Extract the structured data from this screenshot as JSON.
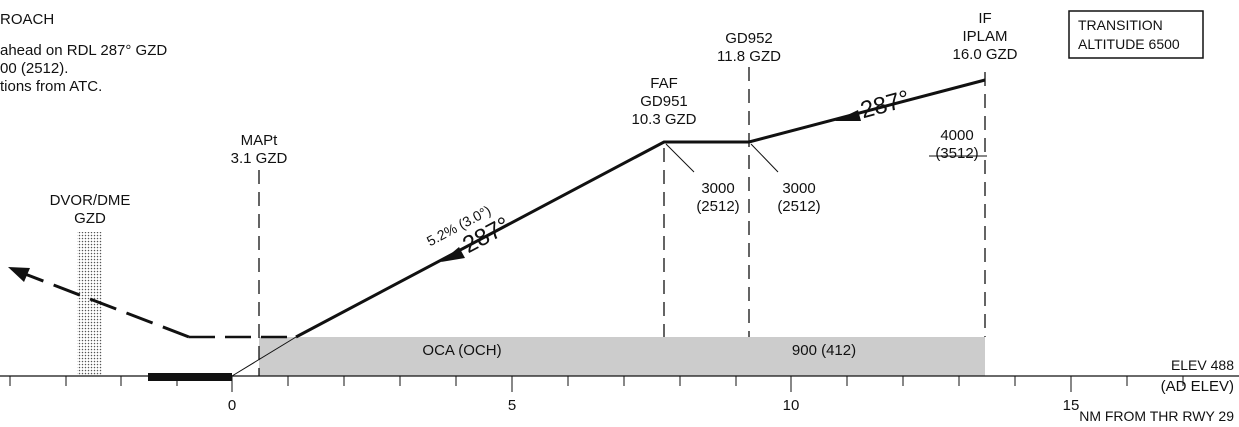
{
  "missed_approach": {
    "heading": "ROACH",
    "lines": [
      "ahead on RDL 287° GZD",
      "00 (2512).",
      "tions from ATC."
    ]
  },
  "transition_box": {
    "line1": "TRANSITION",
    "line2": "ALTITUDE 6500"
  },
  "fixes": {
    "if": {
      "l1": "IF",
      "l2": "IPLAM",
      "l3": "16.0 GZD"
    },
    "gd952": {
      "l1": "GD952",
      "l2": "11.8 GZD"
    },
    "faf": {
      "l1": "FAF",
      "l2": "GD951",
      "l3": "10.3 GZD"
    },
    "mapt": {
      "l1": "MAPt",
      "l2": "3.1 GZD"
    },
    "dvor": {
      "l1": "DVOR/DME",
      "l2": "GZD"
    }
  },
  "altitudes": {
    "if": {
      "alt": "4000",
      "height": "(3512)"
    },
    "gd952": {
      "alt": "3000",
      "height": "(2512)"
    },
    "faf": {
      "alt": "3000",
      "height": "(2512)"
    }
  },
  "tracks": {
    "initial": "287°",
    "final": "287°",
    "gradient": "5.2% (3.0°)"
  },
  "oca": {
    "label": "OCA (OCH)",
    "value": "900 (412)"
  },
  "axis": {
    "ticks": [
      "0",
      "5",
      "10",
      "15"
    ],
    "elev": "ELEV 488",
    "ad_elev": "(AD ELEV)",
    "unit_label": "NM FROM THR RWY 29"
  },
  "colors": {
    "ink": "#111111",
    "oca_fill": "#cccccc",
    "dvor_dots": "#555555"
  }
}
